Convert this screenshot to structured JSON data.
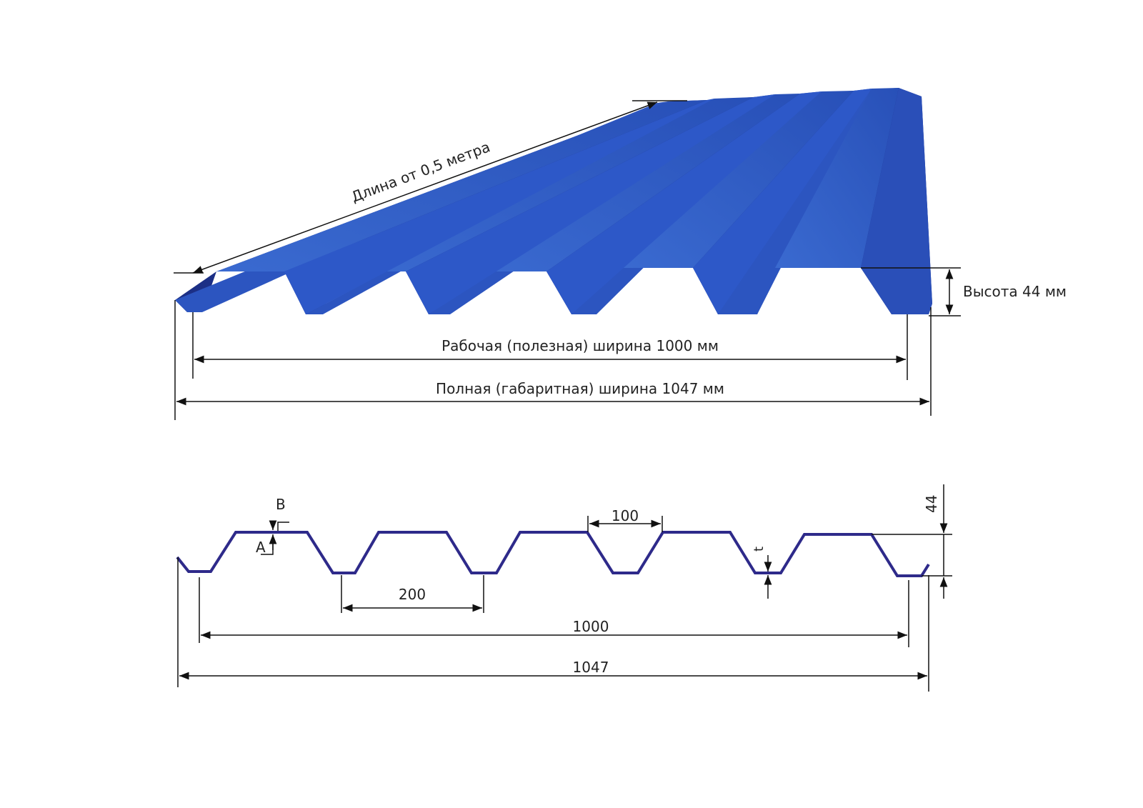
{
  "top_view": {
    "length_label": "Длина от 0,5 метра",
    "height_label": "Высота 44 мм",
    "working_width_label": "Рабочая (полезная) ширина 1000 мм",
    "full_width_label": "Полная (габаритная) ширина 1047 мм",
    "sheet_color": "#2a4fb8"
  },
  "profile_view": {
    "label_b": "B",
    "label_a": "A",
    "label_t": "t",
    "dim_rib_top": "100",
    "dim_pitch": "200",
    "dim_working": "1000",
    "dim_full": "1047",
    "dim_height": "44",
    "profile_color": "#2e2a8a"
  }
}
